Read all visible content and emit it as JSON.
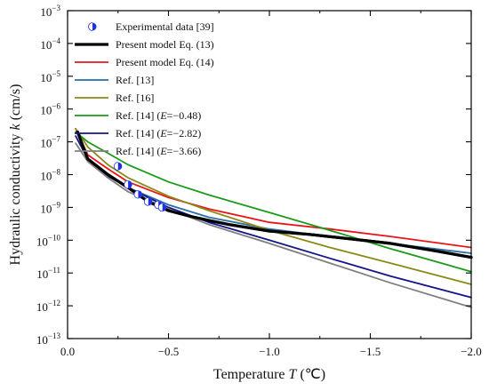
{
  "chart_data": {
    "type": "line",
    "xlabel": "Temperature T (℃)",
    "ylabel": "Hydraulic conductivity k (cm/s)",
    "xlabel_parts": [
      "Temperature ",
      "T",
      " (℃)"
    ],
    "ylabel_parts": [
      "Hydraulic conductivity ",
      "k",
      " (cm/s)"
    ],
    "xlim": [
      0.0,
      -2.0
    ],
    "xticks": [
      0.0,
      -0.5,
      -1.0,
      -1.5,
      -2.0
    ],
    "xtick_labels": [
      "0.0",
      "−0.5",
      "−1.0",
      "−1.5",
      "−2.0"
    ],
    "y_scale": "log",
    "ylim_exponent": [
      -13,
      -3
    ],
    "ytick_base": "10",
    "ytick_exponents": [
      "-13",
      "-12",
      "-11",
      "-10",
      "-9",
      "-8",
      "-7",
      "-6",
      "-5",
      "-4",
      "-3"
    ],
    "grid": false,
    "legend_position": "top-left",
    "series": [
      {
        "name": "Experimental data [39]",
        "kind": "marker",
        "color": "#1f2fe6",
        "points": [
          [
            -0.25,
            1.8e-08
          ],
          [
            -0.3,
            5e-09
          ],
          [
            -0.35,
            2.5e-09
          ],
          [
            -0.4,
            1.5e-09
          ],
          [
            -0.45,
            1.2e-09
          ],
          [
            -0.47,
            1e-09
          ]
        ]
      },
      {
        "name": "Present model Eq. (13)",
        "kind": "line",
        "color": "#000000",
        "width": 3.2,
        "points": [
          [
            -0.05,
            2e-07
          ],
          [
            -0.1,
            3e-08
          ],
          [
            -0.2,
            1e-08
          ],
          [
            -0.3,
            4e-09
          ],
          [
            -0.4,
            1.5e-09
          ],
          [
            -0.5,
            8e-10
          ],
          [
            -0.6,
            5.5e-10
          ],
          [
            -0.7,
            4e-10
          ],
          [
            -0.8,
            3e-10
          ],
          [
            -1.0,
            1.9e-10
          ],
          [
            -1.2,
            1.5e-10
          ],
          [
            -1.4,
            1.1e-10
          ],
          [
            -1.6,
            8e-11
          ],
          [
            -1.8,
            5e-11
          ],
          [
            -2.0,
            3e-11
          ]
        ]
      },
      {
        "name": "Present model Eq. (14)",
        "kind": "line",
        "color": "#e8141a",
        "width": 1.8,
        "points": [
          [
            -0.04,
            2.5e-07
          ],
          [
            -0.1,
            4e-08
          ],
          [
            -0.2,
            1.5e-08
          ],
          [
            -0.3,
            6e-09
          ],
          [
            -0.5,
            2e-09
          ],
          [
            -0.7,
            9e-10
          ],
          [
            -1.0,
            3.5e-10
          ],
          [
            -1.3,
            2.2e-10
          ],
          [
            -1.6,
            1.3e-10
          ],
          [
            -2.0,
            6e-11
          ]
        ]
      },
      {
        "name": "Ref. [13]",
        "kind": "line",
        "color": "#2a6fa5",
        "width": 1.8,
        "points": [
          [
            -0.05,
            2e-07
          ],
          [
            -0.1,
            3e-08
          ],
          [
            -0.2,
            1e-08
          ],
          [
            -0.3,
            4e-09
          ],
          [
            -0.5,
            1.2e-09
          ],
          [
            -0.7,
            5e-10
          ],
          [
            -1.0,
            2.2e-10
          ],
          [
            -1.3,
            1.3e-10
          ],
          [
            -1.6,
            8e-11
          ],
          [
            -2.0,
            4e-11
          ]
        ]
      },
      {
        "name": "Ref. [16]",
        "kind": "line",
        "color": "#8a8a17",
        "width": 1.8,
        "points": [
          [
            -0.04,
            2.5e-07
          ],
          [
            -0.1,
            7e-08
          ],
          [
            -0.2,
            2e-08
          ],
          [
            -0.3,
            8e-09
          ],
          [
            -0.5,
            2.2e-09
          ],
          [
            -0.7,
            8e-10
          ],
          [
            -1.0,
            2e-10
          ],
          [
            -1.3,
            6e-11
          ],
          [
            -1.6,
            2e-11
          ],
          [
            -2.0,
            4.5e-12
          ]
        ]
      },
      {
        "name": "Ref. [14] (E=−0.48)",
        "name_parts": [
          "Ref. [14] (",
          "E",
          "=−0.48)"
        ],
        "kind": "line",
        "color": "#1a9b1a",
        "width": 1.8,
        "points": [
          [
            -0.04,
            2e-07
          ],
          [
            -0.1,
            1e-07
          ],
          [
            -0.2,
            4.5e-08
          ],
          [
            -0.3,
            2e-08
          ],
          [
            -0.5,
            6e-09
          ],
          [
            -0.7,
            2.4e-09
          ],
          [
            -1.0,
            7e-10
          ],
          [
            -1.3,
            2e-10
          ],
          [
            -1.6,
            5.5e-11
          ],
          [
            -2.0,
            1.1e-11
          ]
        ]
      },
      {
        "name": "Ref. [14] (E=−2.82)",
        "name_parts": [
          "Ref. [14] (",
          "E",
          "=−2.82)"
        ],
        "kind": "line",
        "color": "#141489",
        "width": 1.8,
        "points": [
          [
            -0.04,
            1.5e-07
          ],
          [
            -0.1,
            3e-08
          ],
          [
            -0.2,
            9e-09
          ],
          [
            -0.3,
            4e-09
          ],
          [
            -0.5,
            1e-09
          ],
          [
            -0.7,
            3.5e-10
          ],
          [
            -1.0,
            1e-10
          ],
          [
            -1.3,
            2.8e-11
          ],
          [
            -1.6,
            8e-12
          ],
          [
            -2.0,
            1.8e-12
          ]
        ]
      },
      {
        "name": "Ref. [14] (E=−3.66)",
        "name_parts": [
          "Ref. [14] (",
          "E",
          "=−3.66)"
        ],
        "kind": "line",
        "color": "#7f7f7f",
        "width": 1.8,
        "points": [
          [
            -0.04,
            9e-08
          ],
          [
            -0.1,
            2.5e-08
          ],
          [
            -0.2,
            8e-09
          ],
          [
            -0.3,
            3e-09
          ],
          [
            -0.5,
            9e-10
          ],
          [
            -0.7,
            3e-10
          ],
          [
            -1.0,
            8e-11
          ],
          [
            -1.3,
            2e-11
          ],
          [
            -1.6,
            5e-12
          ],
          [
            -2.0,
            9e-13
          ]
        ]
      }
    ]
  }
}
